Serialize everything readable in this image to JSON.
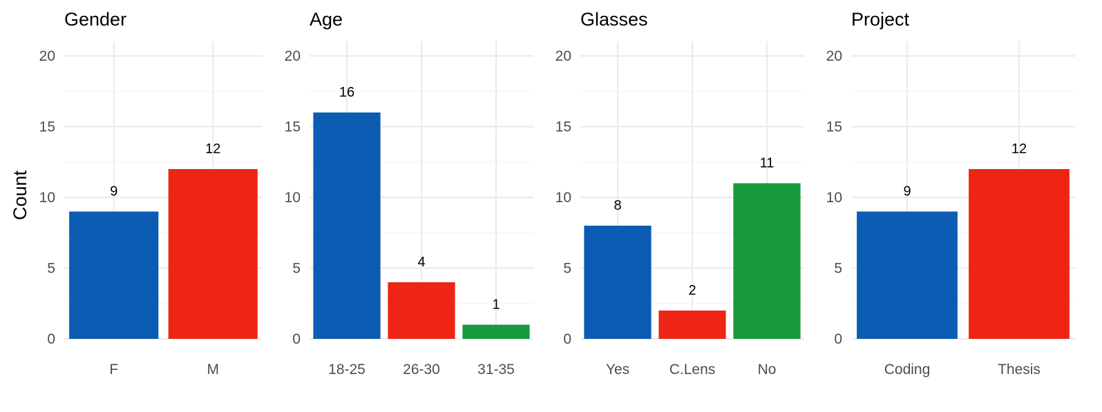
{
  "ylabel": "Count",
  "colors": {
    "blue": "#0b5cb2",
    "red": "#ee2415",
    "green": "#17993e"
  },
  "chart_data": [
    {
      "type": "bar",
      "title": "Gender",
      "categories": [
        "F",
        "M"
      ],
      "values": [
        9,
        12
      ],
      "colors": [
        "#0b5cb2",
        "#ee2415"
      ],
      "ylabel": "Count",
      "ylim": [
        0,
        20
      ],
      "yticks": [
        0,
        5,
        10,
        15,
        20
      ],
      "grid": true
    },
    {
      "type": "bar",
      "title": "Age",
      "categories": [
        "18-25",
        "26-30",
        "31-35"
      ],
      "values": [
        16,
        4,
        1
      ],
      "colors": [
        "#0b5cb2",
        "#ee2415",
        "#17993e"
      ],
      "ylim": [
        0,
        20
      ],
      "yticks": [
        0,
        5,
        10,
        15,
        20
      ],
      "grid": true
    },
    {
      "type": "bar",
      "title": "Glasses",
      "categories": [
        "Yes",
        "C.Lens",
        "No"
      ],
      "values": [
        8,
        2,
        11
      ],
      "colors": [
        "#0b5cb2",
        "#ee2415",
        "#17993e"
      ],
      "ylim": [
        0,
        20
      ],
      "yticks": [
        0,
        5,
        10,
        15,
        20
      ],
      "grid": true
    },
    {
      "type": "bar",
      "title": "Project",
      "categories": [
        "Coding",
        "Thesis"
      ],
      "values": [
        9,
        12
      ],
      "colors": [
        "#0b5cb2",
        "#ee2415"
      ],
      "ylim": [
        0,
        20
      ],
      "yticks": [
        0,
        5,
        10,
        15,
        20
      ],
      "grid": true
    }
  ]
}
